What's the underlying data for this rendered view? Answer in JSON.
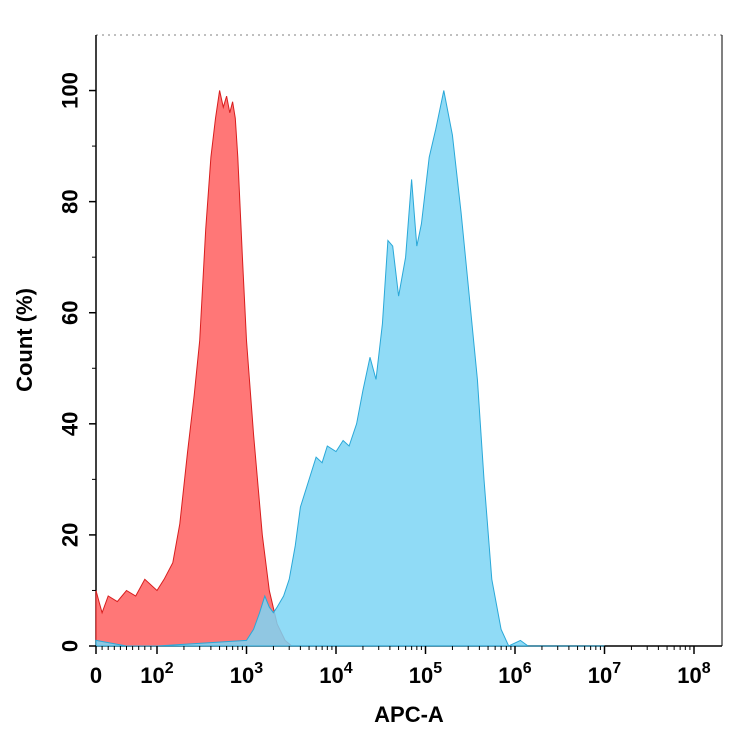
{
  "chart_data": {
    "type": "area",
    "xlabel": "APC-A",
    "ylabel": "Count (%)",
    "x_scale": "biexponential",
    "x_ticks": [
      {
        "value": 0,
        "base": "0",
        "exp": ""
      },
      {
        "value": 100,
        "base": "10",
        "exp": "2"
      },
      {
        "value": 1000,
        "base": "10",
        "exp": "3"
      },
      {
        "value": 10000,
        "base": "10",
        "exp": "4"
      },
      {
        "value": 100000,
        "base": "10",
        "exp": "5"
      },
      {
        "value": 1000000,
        "base": "10",
        "exp": "6"
      },
      {
        "value": 10000000,
        "base": "10",
        "exp": "7"
      },
      {
        "value": 100000000,
        "base": "10",
        "exp": "8"
      }
    ],
    "y_ticks": [
      0,
      20,
      40,
      60,
      80,
      100
    ],
    "ylim": [
      0,
      110
    ],
    "grid": false,
    "series": [
      {
        "color": "#ff7070",
        "stroke": "#d81e1e",
        "points": [
          [
            0,
            10
          ],
          [
            5,
            8
          ],
          [
            10,
            6
          ],
          [
            20,
            9
          ],
          [
            35,
            8
          ],
          [
            50,
            10
          ],
          [
            65,
            9
          ],
          [
            80,
            12
          ],
          [
            100,
            10
          ],
          [
            120,
            12
          ],
          [
            150,
            15
          ],
          [
            180,
            22
          ],
          [
            220,
            35
          ],
          [
            260,
            45
          ],
          [
            300,
            55
          ],
          [
            350,
            75
          ],
          [
            400,
            88
          ],
          [
            450,
            95
          ],
          [
            500,
            100
          ],
          [
            550,
            97
          ],
          [
            600,
            99
          ],
          [
            650,
            96
          ],
          [
            700,
            98
          ],
          [
            750,
            95
          ],
          [
            800,
            88
          ],
          [
            900,
            70
          ],
          [
            1000,
            55
          ],
          [
            1200,
            38
          ],
          [
            1500,
            20
          ],
          [
            1800,
            10
          ],
          [
            2200,
            4
          ],
          [
            2700,
            1
          ],
          [
            3200,
            0
          ],
          [
            10000000,
            0
          ]
        ]
      },
      {
        "color": "#7dd5f5",
        "stroke": "#2aa8d8",
        "points": [
          [
            0,
            1
          ],
          [
            50,
            0
          ],
          [
            100,
            0
          ],
          [
            1000,
            1
          ],
          [
            1200,
            3
          ],
          [
            1400,
            6
          ],
          [
            1600,
            9
          ],
          [
            1800,
            7
          ],
          [
            2000,
            6
          ],
          [
            2200,
            7
          ],
          [
            2600,
            9
          ],
          [
            3000,
            12
          ],
          [
            3500,
            18
          ],
          [
            4000,
            25
          ],
          [
            5000,
            30
          ],
          [
            6000,
            34
          ],
          [
            7000,
            33
          ],
          [
            8000,
            36
          ],
          [
            10000,
            35
          ],
          [
            12000,
            37
          ],
          [
            14000,
            36
          ],
          [
            17000,
            40
          ],
          [
            20000,
            46
          ],
          [
            24000,
            52
          ],
          [
            28000,
            48
          ],
          [
            33000,
            58
          ],
          [
            38000,
            73
          ],
          [
            43000,
            72
          ],
          [
            50000,
            63
          ],
          [
            60000,
            70
          ],
          [
            70000,
            84
          ],
          [
            80000,
            72
          ],
          [
            90000,
            76
          ],
          [
            110000,
            88
          ],
          [
            130000,
            93
          ],
          [
            160000,
            100
          ],
          [
            200000,
            92
          ],
          [
            250000,
            78
          ],
          [
            300000,
            65
          ],
          [
            380000,
            48
          ],
          [
            450000,
            30
          ],
          [
            550000,
            12
          ],
          [
            700000,
            3
          ],
          [
            850000,
            0
          ],
          [
            1150000,
            1
          ],
          [
            1400000,
            0
          ],
          [
            10000000,
            0
          ]
        ]
      }
    ]
  }
}
